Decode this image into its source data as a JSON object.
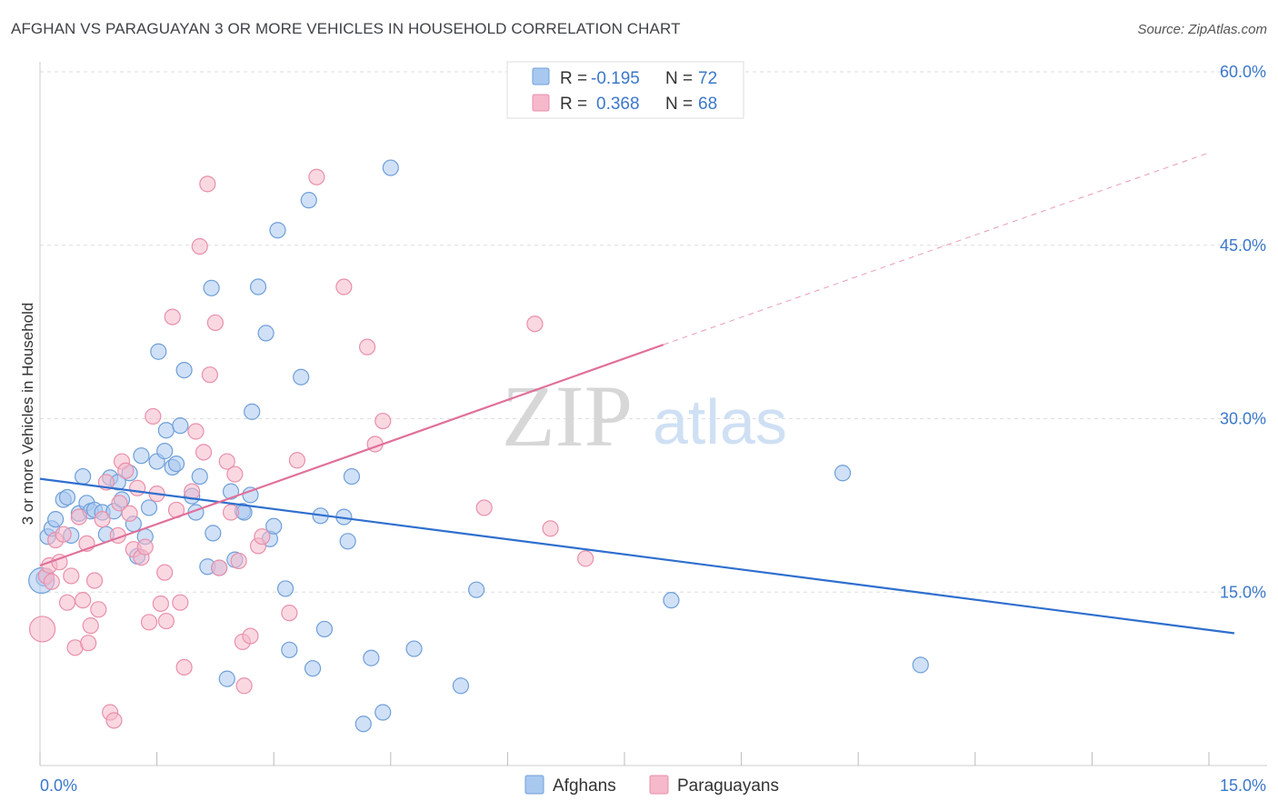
{
  "title": "AFGHAN VS PARAGUAYAN 3 OR MORE VEHICLES IN HOUSEHOLD CORRELATION CHART",
  "source": "Source: ZipAtlas.com",
  "watermark": {
    "zip": "ZIP",
    "atlas": "atlas"
  },
  "colors": {
    "afghans_fill": "#a9c8f0",
    "afghans_stroke": "#6f9fd8",
    "afghans_line": "#2f6fce",
    "paraguayans_fill": "#f6b8cb",
    "paraguayans_stroke": "#e890aa",
    "paraguayans_line": "#e0709a",
    "tick": "#3b78c9",
    "grid": "#dddddd"
  },
  "legend": {
    "rows": [
      {
        "r_label": "R =",
        "r_value": "-0.195",
        "n_label": "N =",
        "n_value": "72"
      },
      {
        "r_label": "R =",
        "r_value": "0.368",
        "n_label": "N =",
        "n_value": "68"
      }
    ]
  },
  "chart_data": {
    "type": "scatter",
    "title": "AFGHAN VS PARAGUAYAN 3 OR MORE VEHICLES IN HOUSEHOLD CORRELATION CHART",
    "xlabel": "",
    "ylabel": "3 or more Vehicles in Household",
    "xlim": [
      0,
      15
    ],
    "ylim": [
      0,
      60
    ],
    "x_tick_labels": [
      "0.0%",
      "15.0%"
    ],
    "y_ticks": [
      15,
      30,
      45,
      60
    ],
    "y_tick_labels": [
      "15.0%",
      "30.0%",
      "45.0%",
      "60.0%"
    ],
    "grid": true,
    "legend_position": "top-center",
    "series": [
      {
        "name": "Afghans",
        "points": [
          [
            0.05,
            16.2
          ],
          [
            0.1,
            19.8
          ],
          [
            0.15,
            20.5
          ],
          [
            0.2,
            21.3
          ],
          [
            0.3,
            23.0
          ],
          [
            0.35,
            23.2
          ],
          [
            0.4,
            19.9
          ],
          [
            0.5,
            21.8
          ],
          [
            0.55,
            25.0
          ],
          [
            0.6,
            22.7
          ],
          [
            0.65,
            22.0
          ],
          [
            0.7,
            22.1
          ],
          [
            0.8,
            21.9
          ],
          [
            0.85,
            20.0
          ],
          [
            0.9,
            24.9
          ],
          [
            0.95,
            22.0
          ],
          [
            1.0,
            24.5
          ],
          [
            1.05,
            23.0
          ],
          [
            1.15,
            25.3
          ],
          [
            1.2,
            20.9
          ],
          [
            1.25,
            18.1
          ],
          [
            1.3,
            26.8
          ],
          [
            1.35,
            19.8
          ],
          [
            1.4,
            22.3
          ],
          [
            1.5,
            26.3
          ],
          [
            1.52,
            35.8
          ],
          [
            1.6,
            27.2
          ],
          [
            1.62,
            29.0
          ],
          [
            1.7,
            25.8
          ],
          [
            1.75,
            26.1
          ],
          [
            1.8,
            29.4
          ],
          [
            1.85,
            34.2
          ],
          [
            1.95,
            23.3
          ],
          [
            2.0,
            21.9
          ],
          [
            2.05,
            25.0
          ],
          [
            2.15,
            17.2
          ],
          [
            2.2,
            41.3
          ],
          [
            2.22,
            20.1
          ],
          [
            2.3,
            17.1
          ],
          [
            2.4,
            7.5
          ],
          [
            2.45,
            23.7
          ],
          [
            2.5,
            17.8
          ],
          [
            2.6,
            22.0
          ],
          [
            2.62,
            21.9
          ],
          [
            2.7,
            23.4
          ],
          [
            2.72,
            30.6
          ],
          [
            2.8,
            41.4
          ],
          [
            2.9,
            37.4
          ],
          [
            2.95,
            19.6
          ],
          [
            3.0,
            20.7
          ],
          [
            3.05,
            46.3
          ],
          [
            3.15,
            15.3
          ],
          [
            3.2,
            10.0
          ],
          [
            3.35,
            33.6
          ],
          [
            3.45,
            48.9
          ],
          [
            3.5,
            8.4
          ],
          [
            3.6,
            21.6
          ],
          [
            3.65,
            11.8
          ],
          [
            3.9,
            21.5
          ],
          [
            3.95,
            19.4
          ],
          [
            4.0,
            25.0
          ],
          [
            4.15,
            3.6
          ],
          [
            4.25,
            9.3
          ],
          [
            4.4,
            4.6
          ],
          [
            4.5,
            51.7
          ],
          [
            4.8,
            10.1
          ],
          [
            5.4,
            6.9
          ],
          [
            5.6,
            15.2
          ],
          [
            8.1,
            14.3
          ],
          [
            10.3,
            25.3
          ],
          [
            11.3,
            8.7
          ],
          [
            0.02,
            16.0
          ]
        ],
        "trend": {
          "x": [
            0,
            15
          ],
          "y": [
            24.8,
            11.6
          ]
        }
      },
      {
        "name": "Paraguayans",
        "points": [
          [
            0.03,
            11.8
          ],
          [
            0.08,
            16.4
          ],
          [
            0.12,
            17.3
          ],
          [
            0.15,
            15.9
          ],
          [
            0.2,
            19.5
          ],
          [
            0.25,
            17.6
          ],
          [
            0.3,
            20.0
          ],
          [
            0.35,
            14.1
          ],
          [
            0.4,
            16.4
          ],
          [
            0.45,
            10.2
          ],
          [
            0.5,
            21.5
          ],
          [
            0.55,
            14.3
          ],
          [
            0.6,
            19.2
          ],
          [
            0.62,
            10.6
          ],
          [
            0.65,
            12.1
          ],
          [
            0.7,
            16.0
          ],
          [
            0.75,
            13.5
          ],
          [
            0.8,
            21.3
          ],
          [
            0.85,
            24.5
          ],
          [
            0.9,
            4.6
          ],
          [
            0.95,
            3.9
          ],
          [
            1.0,
            19.9
          ],
          [
            1.02,
            22.7
          ],
          [
            1.05,
            26.3
          ],
          [
            1.1,
            25.5
          ],
          [
            1.15,
            21.8
          ],
          [
            1.2,
            18.7
          ],
          [
            1.25,
            24.0
          ],
          [
            1.3,
            18.0
          ],
          [
            1.35,
            18.9
          ],
          [
            1.4,
            12.4
          ],
          [
            1.45,
            30.2
          ],
          [
            1.5,
            23.5
          ],
          [
            1.55,
            14.0
          ],
          [
            1.6,
            16.7
          ],
          [
            1.62,
            12.5
          ],
          [
            1.7,
            38.8
          ],
          [
            1.75,
            22.1
          ],
          [
            1.8,
            14.1
          ],
          [
            1.85,
            8.5
          ],
          [
            1.95,
            23.7
          ],
          [
            2.0,
            28.9
          ],
          [
            2.05,
            44.9
          ],
          [
            2.1,
            27.1
          ],
          [
            2.15,
            50.3
          ],
          [
            2.18,
            33.8
          ],
          [
            2.25,
            38.3
          ],
          [
            2.3,
            17.1
          ],
          [
            2.4,
            26.3
          ],
          [
            2.45,
            21.9
          ],
          [
            2.5,
            25.2
          ],
          [
            2.55,
            17.7
          ],
          [
            2.6,
            10.7
          ],
          [
            2.62,
            6.9
          ],
          [
            2.7,
            11.2
          ],
          [
            2.8,
            19.0
          ],
          [
            2.85,
            19.8
          ],
          [
            3.2,
            13.2
          ],
          [
            3.3,
            26.4
          ],
          [
            3.55,
            50.9
          ],
          [
            3.9,
            41.4
          ],
          [
            4.2,
            36.2
          ],
          [
            4.3,
            27.8
          ],
          [
            4.4,
            29.8
          ],
          [
            5.7,
            22.3
          ],
          [
            6.35,
            38.2
          ],
          [
            6.55,
            20.5
          ],
          [
            7.0,
            17.9
          ]
        ],
        "trend": {
          "x": [
            0,
            8.0
          ],
          "y": [
            17.3,
            36.4
          ]
        },
        "trend_dashed": {
          "x": [
            8.0,
            15
          ],
          "y": [
            36.4,
            53.0
          ]
        }
      }
    ]
  },
  "bottom_legend": {
    "items": [
      "Afghans",
      "Paraguayans"
    ]
  }
}
